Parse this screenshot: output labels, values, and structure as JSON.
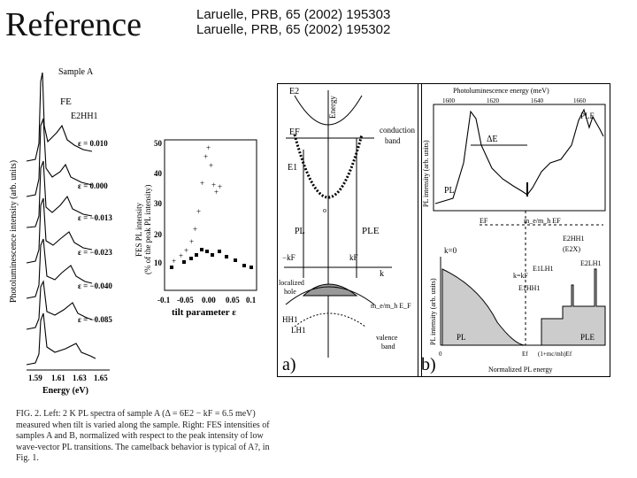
{
  "slide": {
    "title": "Reference",
    "refs": [
      "Laruelle, PRB, 65 (2002) 195303",
      "Laruelle, PRB, 65 (2002) 195302"
    ]
  },
  "left_figure": {
    "sample_label": "Sample A",
    "peak_labels": [
      "FE",
      "E2HH1"
    ],
    "strain_labels": [
      "ε = 0.010",
      "ε = 0.000",
      "ε = −0.013",
      "ε = −0.023",
      "ε = −0.040",
      "ε = −0.085"
    ],
    "y_axis_label": "Photoluminescence intensity (arb. units)",
    "x_axis_label": "Energy (eV)",
    "x_ticks": [
      "1.59",
      "1.61",
      "1.63",
      "1.65"
    ]
  },
  "mid_figure": {
    "y_axis_label1": "FES PL intensity",
    "y_axis_label2": "(% of the peak PL intensity)",
    "x_axis_label": "tilt parameter ε",
    "y_ticks": [
      "10",
      "20",
      "30",
      "40",
      "50"
    ],
    "x_ticks": [
      "-0.1",
      "-0.05",
      "0.00",
      "0.05",
      "0.1"
    ]
  },
  "caption": "FIG. 2. Left: 2 K PL spectra of sample A (Δ = 6E2 − kF = 6.5 meV) measured when tilt is varied along the sample. Right: FES intensities of samples A and B, normalized with respect to the peak intensity of low wave-vector PL transitions. The camelback behavior is typical of A?, in Fig. 1.",
  "panel_a": {
    "label": "a)",
    "labels": {
      "e2": "E2",
      "energy": "Energy",
      "ef": "EF",
      "e1": "E1",
      "conduction": "conduction",
      "band": "band",
      "pl": "PL",
      "ple": "PLE",
      "neg_kf": "−kF",
      "kf": "kF",
      "k": "k",
      "localized": "localized",
      "hole": "hole",
      "hh1": "HH1",
      "lh1": "LH1",
      "valence": "valence",
      "vband": "band",
      "mass": "m_e/m_h E_F",
      "zero": "o"
    }
  },
  "panel_b": {
    "label": "b)",
    "top_axis": "Photoluminescence energy (meV)",
    "top_ticks": [
      "1600",
      "1620",
      "1640",
      "1660"
    ],
    "top_ylabel": "PL intensity (arb. units)",
    "pl": "PL",
    "ple": "PLE",
    "delta_e": "ΔE",
    "ef": "EF",
    "mass_ef": "m_e/m_h EF",
    "e2hh1": "E2HH1",
    "e2x": "(E2X)",
    "e1lh1": "E1LH1",
    "e2lh1": "E2LH1",
    "k0": "k=0",
    "kkf": "k=kF",
    "e1hh1": "E1HH1",
    "bottom_ylabel": "PL intensity (arb. units)",
    "bottom_xlabel": "Normalized PL energy",
    "bottom_ticks": [
      "0",
      "Ef",
      "(1+mc/mh)Ef"
    ],
    "pl2": "PL",
    "ple2": "PLE"
  }
}
